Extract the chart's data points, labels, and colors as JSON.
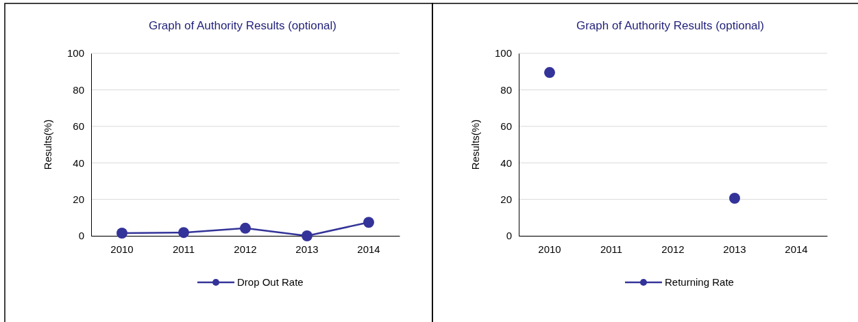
{
  "chart_data": [
    {
      "type": "line",
      "title": "Graph of Authority Results (optional)",
      "ylabel": "Results(%)",
      "categories": [
        "2010",
        "2011",
        "2012",
        "2013",
        "2014"
      ],
      "series": [
        {
          "name": "Drop Out Rate",
          "color": "#333399",
          "values": [
            1.5,
            1.8,
            4.2,
            0,
            7.4
          ]
        }
      ],
      "ylim": [
        0,
        100
      ],
      "yticks": [
        0,
        20,
        40,
        60,
        80,
        100
      ],
      "grid": "y",
      "legend": "bottom",
      "marker": "circle",
      "line_style": "solid"
    },
    {
      "type": "scatter",
      "title": "Graph of Authority Results (optional)",
      "ylabel": "Results(%)",
      "categories": [
        "2010",
        "2011",
        "2012",
        "2013",
        "2014"
      ],
      "series": [
        {
          "name": "Returning Rate",
          "color": "#333399",
          "values": [
            89.5,
            null,
            null,
            20.6,
            null
          ]
        }
      ],
      "ylim": [
        0,
        100
      ],
      "yticks": [
        0,
        20,
        40,
        60,
        80,
        100
      ],
      "grid": "y",
      "legend": "bottom",
      "marker": "circle",
      "line_style": "solid"
    }
  ]
}
